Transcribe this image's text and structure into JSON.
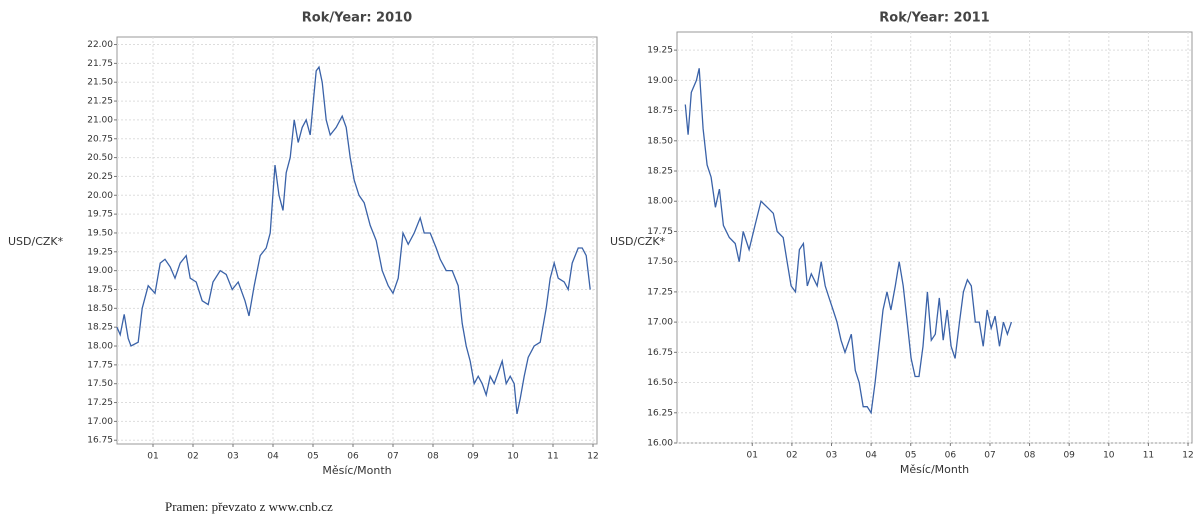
{
  "chart_data": [
    {
      "type": "line",
      "title": "Rok/Year: 2010",
      "x_label": "Měsíc/Month",
      "y_label": "USD/CZK*",
      "color": "#3a62a8",
      "grid": true,
      "xlim": [
        0.1,
        12.1
      ],
      "ylim": [
        16.7,
        22.1
      ],
      "xticks": [
        {
          "value": 1,
          "label": "01"
        },
        {
          "value": 2,
          "label": "02"
        },
        {
          "value": 3,
          "label": "03"
        },
        {
          "value": 4,
          "label": "04"
        },
        {
          "value": 5,
          "label": "05"
        },
        {
          "value": 6,
          "label": "06"
        },
        {
          "value": 7,
          "label": "07"
        },
        {
          "value": 8,
          "label": "08"
        },
        {
          "value": 9,
          "label": "09"
        },
        10,
        11,
        12
      ],
      "yticks": [
        16.75,
        {
          "value": 17,
          "label": "17.00"
        },
        17.25,
        {
          "value": 17.5,
          "label": "17.50"
        },
        17.75,
        {
          "value": 18,
          "label": "18.00"
        },
        18.25,
        {
          "value": 18.5,
          "label": "18.50"
        },
        18.75,
        {
          "value": 19,
          "label": "19.00"
        },
        19.25,
        {
          "value": 19.5,
          "label": "19.50"
        },
        19.75,
        {
          "value": 20,
          "label": "20.00"
        },
        20.25,
        {
          "value": 20.5,
          "label": "20.50"
        },
        20.75,
        {
          "value": 21,
          "label": "21.00"
        },
        21.25,
        {
          "value": 21.5,
          "label": "21.50"
        },
        21.75,
        {
          "value": 22,
          "label": "22.00"
        }
      ],
      "x": [
        0.1,
        0.18,
        0.28,
        0.38,
        0.45,
        0.63,
        0.73,
        0.88,
        1.05,
        1.18,
        1.3,
        1.43,
        1.55,
        1.68,
        1.83,
        1.93,
        2.08,
        2.23,
        2.38,
        2.5,
        2.68,
        2.83,
        2.98,
        3.13,
        3.3,
        3.4,
        3.53,
        3.68,
        3.83,
        3.93,
        4.05,
        4.15,
        4.25,
        4.33,
        4.43,
        4.53,
        4.63,
        4.73,
        4.83,
        4.93,
        5.0,
        5.08,
        5.15,
        5.23,
        5.33,
        5.43,
        5.58,
        5.73,
        5.83,
        5.93,
        6.03,
        6.15,
        6.28,
        6.43,
        6.58,
        6.73,
        6.88,
        7.0,
        7.13,
        7.25,
        7.38,
        7.53,
        7.68,
        7.78,
        7.93,
        8.08,
        8.18,
        8.33,
        8.48,
        8.63,
        8.73,
        8.83,
        8.93,
        9.03,
        9.13,
        9.23,
        9.33,
        9.43,
        9.53,
        9.63,
        9.73,
        9.83,
        9.93,
        10.03,
        10.1,
        10.18,
        10.28,
        10.38,
        10.53,
        10.68,
        10.83,
        10.93,
        11.03,
        11.13,
        11.28,
        11.38,
        11.48,
        11.63,
        11.73,
        11.83,
        11.93
      ],
      "values": [
        18.25,
        18.15,
        18.42,
        18.1,
        18.0,
        18.05,
        18.5,
        18.8,
        18.7,
        19.1,
        19.15,
        19.05,
        18.9,
        19.1,
        19.2,
        18.9,
        18.85,
        18.6,
        18.55,
        18.85,
        19.0,
        18.95,
        18.75,
        18.85,
        18.6,
        18.4,
        18.8,
        19.2,
        19.3,
        19.5,
        20.4,
        20.0,
        19.8,
        20.3,
        20.5,
        21.0,
        20.7,
        20.9,
        21.0,
        20.8,
        21.2,
        21.65,
        21.7,
        21.5,
        21.0,
        20.8,
        20.9,
        21.05,
        20.9,
        20.5,
        20.2,
        20.0,
        19.9,
        19.6,
        19.4,
        19.0,
        18.8,
        18.7,
        18.9,
        19.5,
        19.35,
        19.5,
        19.7,
        19.5,
        19.5,
        19.3,
        19.15,
        19.0,
        19.0,
        18.8,
        18.3,
        18.0,
        17.8,
        17.5,
        17.6,
        17.5,
        17.35,
        17.6,
        17.5,
        17.65,
        17.8,
        17.5,
        17.6,
        17.5,
        17.1,
        17.3,
        17.6,
        17.85,
        18.0,
        18.05,
        18.5,
        18.9,
        19.1,
        18.9,
        18.85,
        18.75,
        19.1,
        19.3,
        19.3,
        19.2,
        18.75
      ]
    },
    {
      "type": "line",
      "title": "Rok/Year: 2011",
      "x_label": "Měsíc/Month",
      "y_label": "USD/CZK*",
      "color": "#3a62a8",
      "grid": true,
      "xlim": [
        -0.9,
        12.1
      ],
      "ylim": [
        16.0,
        19.4
      ],
      "xticks": [
        {
          "value": 1,
          "label": "01"
        },
        {
          "value": 2,
          "label": "02"
        },
        {
          "value": 3,
          "label": "03"
        },
        {
          "value": 4,
          "label": "04"
        },
        {
          "value": 5,
          "label": "05"
        },
        {
          "value": 6,
          "label": "06"
        },
        {
          "value": 7,
          "label": "07"
        },
        {
          "value": 8,
          "label": "08"
        },
        {
          "value": 9,
          "label": "09"
        },
        10,
        11,
        12
      ],
      "yticks": [
        {
          "value": 16,
          "label": "16.00"
        },
        16.25,
        {
          "value": 16.5,
          "label": "16.50"
        },
        16.75,
        {
          "value": 17,
          "label": "17.00"
        },
        17.25,
        {
          "value": 17.5,
          "label": "17.50"
        },
        17.75,
        {
          "value": 18,
          "label": "18.00"
        },
        18.25,
        {
          "value": 18.5,
          "label": "18.50"
        },
        18.75,
        {
          "value": 19,
          "label": "19.00"
        },
        19.25
      ],
      "x": [
        -0.69,
        -0.62,
        -0.54,
        -0.41,
        -0.34,
        -0.24,
        -0.14,
        -0.04,
        0.07,
        0.17,
        0.27,
        0.42,
        0.57,
        0.67,
        0.77,
        0.92,
        1.07,
        1.22,
        1.38,
        1.53,
        1.63,
        1.78,
        1.88,
        1.98,
        2.09,
        2.19,
        2.29,
        2.39,
        2.49,
        2.64,
        2.74,
        2.84,
        2.94,
        3.04,
        3.14,
        3.24,
        3.34,
        3.5,
        3.6,
        3.7,
        3.8,
        3.9,
        4.0,
        4.1,
        4.2,
        4.3,
        4.4,
        4.5,
        4.61,
        4.71,
        4.81,
        4.91,
        5.01,
        5.11,
        5.21,
        5.31,
        5.42,
        5.52,
        5.62,
        5.72,
        5.82,
        5.92,
        6.02,
        6.12,
        6.23,
        6.33,
        6.43,
        6.53,
        6.63,
        6.73,
        6.83,
        6.93,
        7.03,
        7.13,
        7.24,
        7.34,
        7.44,
        7.54
      ],
      "values": [
        18.8,
        18.55,
        18.9,
        19.0,
        19.1,
        18.6,
        18.3,
        18.2,
        17.95,
        18.1,
        17.8,
        17.7,
        17.65,
        17.5,
        17.75,
        17.6,
        17.8,
        18.0,
        17.95,
        17.9,
        17.75,
        17.7,
        17.5,
        17.3,
        17.25,
        17.6,
        17.65,
        17.3,
        17.4,
        17.3,
        17.5,
        17.3,
        17.2,
        17.1,
        17.0,
        16.85,
        16.75,
        16.9,
        16.6,
        16.5,
        16.3,
        16.3,
        16.25,
        16.5,
        16.8,
        17.1,
        17.25,
        17.1,
        17.3,
        17.5,
        17.3,
        17.0,
        16.7,
        16.55,
        16.55,
        16.8,
        17.25,
        16.85,
        16.9,
        17.2,
        16.85,
        17.1,
        16.8,
        16.7,
        17.0,
        17.25,
        17.35,
        17.3,
        17.0,
        17.0,
        16.8,
        17.1,
        16.95,
        17.05,
        16.8,
        17.0,
        16.9,
        17.0
      ]
    }
  ],
  "source": "Pramen: převzato z www.cnb.cz"
}
